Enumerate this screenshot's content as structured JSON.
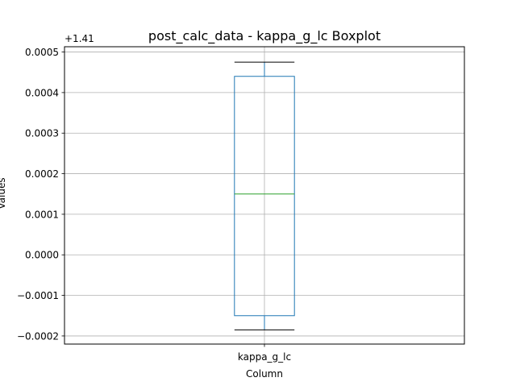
{
  "chart_data": {
    "type": "box",
    "title": "post_calc_data - kappa_g_lc Boxplot",
    "xlabel": "Column",
    "ylabel": "Values",
    "offset_label": "+1.41",
    "offset": 1.41,
    "categories": [
      "kappa_g_lc"
    ],
    "ylim": [
      -0.00022,
      0.000513
    ],
    "y_ticks": [
      -0.0002,
      -0.0001,
      0.0,
      0.0001,
      0.0002,
      0.0003,
      0.0004,
      0.0005
    ],
    "y_tick_labels": [
      "−0.0002",
      "−0.0001",
      "0.0000",
      "0.0001",
      "0.0002",
      "0.0003",
      "0.0004",
      "0.0005"
    ],
    "boxes": [
      {
        "category": "kappa_g_lc",
        "whisker_low": -0.000185,
        "q1": -0.00015,
        "median": 0.00015,
        "q3": 0.00044,
        "whisker_high": 0.000475
      }
    ],
    "grid": true,
    "legend": false,
    "colors": {
      "box": "#1f77b4",
      "median": "#2ca02c",
      "whisker": "#000000",
      "grid": "#b0b0b0",
      "axes": "#000000"
    }
  }
}
